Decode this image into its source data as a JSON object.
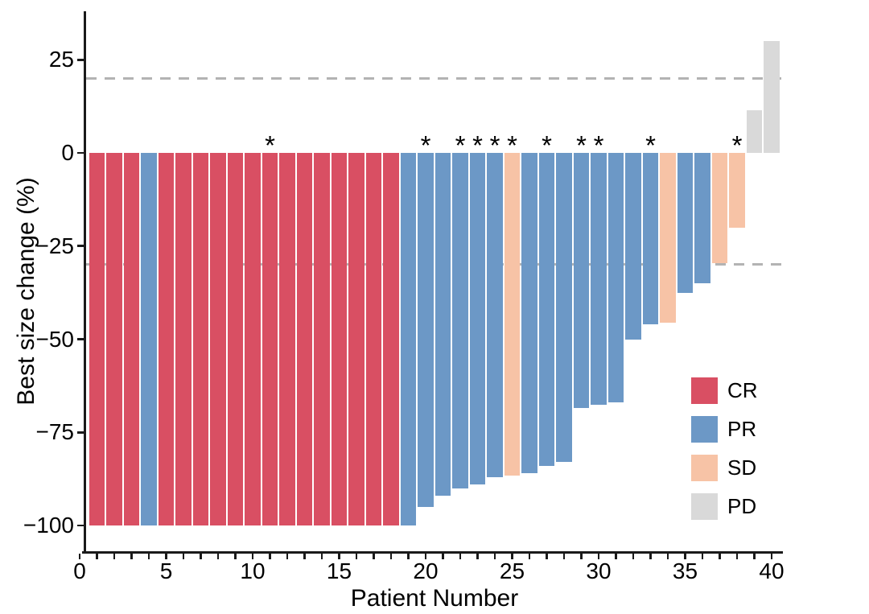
{
  "chart_data": {
    "type": "bar",
    "subtype": "waterfall",
    "title": "",
    "xlabel": "Patient Number",
    "ylabel": "Best size change (%)",
    "x_axis": {
      "min": 0,
      "max": 40,
      "minor_tick_every": 1,
      "labeled_ticks": [
        0,
        5,
        10,
        15,
        20,
        25,
        30,
        35,
        40
      ],
      "labels": [
        "0",
        "5",
        "10",
        "15",
        "20",
        "25",
        "30",
        "35",
        "40"
      ]
    },
    "y_axis": {
      "ticks": [
        25,
        0,
        -25,
        -50,
        -75,
        -100
      ],
      "labels": [
        "25",
        "0",
        "−25",
        "−50",
        "−75",
        "−100"
      ],
      "range_shown": [
        -107,
        38
      ]
    },
    "reference_lines": [
      20,
      -30
    ],
    "grid": false,
    "annotation_symbol": "*",
    "legend_position": "inside-right",
    "legend": [
      {
        "label": "CR",
        "color": "#D94F63"
      },
      {
        "label": "PR",
        "color": "#6C98C6"
      },
      {
        "label": "SD",
        "color": "#F7C3A6"
      },
      {
        "label": "PD",
        "color": "#D9D9D9"
      }
    ],
    "colors": {
      "CR": "#D94F63",
      "PR": "#6C98C6",
      "SD": "#F7C3A6",
      "PD": "#D9D9D9",
      "reference_line": "#B3B3B3",
      "axis": "#1A1A1A",
      "text": "#000000"
    },
    "patients": [
      {
        "id": 1,
        "value": -100,
        "response": "CR",
        "star": false
      },
      {
        "id": 2,
        "value": -100,
        "response": "CR",
        "star": false
      },
      {
        "id": 3,
        "value": -100,
        "response": "CR",
        "star": false
      },
      {
        "id": 4,
        "value": -100,
        "response": "PR",
        "star": false
      },
      {
        "id": 5,
        "value": -100,
        "response": "CR",
        "star": false
      },
      {
        "id": 6,
        "value": -100,
        "response": "CR",
        "star": false
      },
      {
        "id": 7,
        "value": -100,
        "response": "CR",
        "star": false
      },
      {
        "id": 8,
        "value": -100,
        "response": "CR",
        "star": false
      },
      {
        "id": 9,
        "value": -100,
        "response": "CR",
        "star": false
      },
      {
        "id": 10,
        "value": -100,
        "response": "CR",
        "star": false
      },
      {
        "id": 11,
        "value": -100,
        "response": "CR",
        "star": true
      },
      {
        "id": 12,
        "value": -100,
        "response": "CR",
        "star": false
      },
      {
        "id": 13,
        "value": -100,
        "response": "CR",
        "star": false
      },
      {
        "id": 14,
        "value": -100,
        "response": "CR",
        "star": false
      },
      {
        "id": 15,
        "value": -100,
        "response": "CR",
        "star": false
      },
      {
        "id": 16,
        "value": -100,
        "response": "CR",
        "star": false
      },
      {
        "id": 17,
        "value": -100,
        "response": "CR",
        "star": false
      },
      {
        "id": 18,
        "value": -100,
        "response": "CR",
        "star": false
      },
      {
        "id": 19,
        "value": -100,
        "response": "PR",
        "star": false
      },
      {
        "id": 20,
        "value": -95,
        "response": "PR",
        "star": true
      },
      {
        "id": 21,
        "value": -92,
        "response": "PR",
        "star": false
      },
      {
        "id": 22,
        "value": -90,
        "response": "PR",
        "star": true
      },
      {
        "id": 23,
        "value": -89,
        "response": "PR",
        "star": true
      },
      {
        "id": 24,
        "value": -87,
        "response": "PR",
        "star": true
      },
      {
        "id": 25,
        "value": -86.5,
        "response": "SD",
        "star": true
      },
      {
        "id": 26,
        "value": -86,
        "response": "PR",
        "star": false
      },
      {
        "id": 27,
        "value": -84,
        "response": "PR",
        "star": true
      },
      {
        "id": 28,
        "value": -83,
        "response": "PR",
        "star": false
      },
      {
        "id": 29,
        "value": -68.5,
        "response": "PR",
        "star": true
      },
      {
        "id": 30,
        "value": -67.5,
        "response": "PR",
        "star": true
      },
      {
        "id": 31,
        "value": -67,
        "response": "PR",
        "star": false
      },
      {
        "id": 32,
        "value": -50,
        "response": "PR",
        "star": false
      },
      {
        "id": 33,
        "value": -46,
        "response": "PR",
        "star": true
      },
      {
        "id": 34,
        "value": -45.5,
        "response": "SD",
        "star": false
      },
      {
        "id": 35,
        "value": -37.5,
        "response": "PR",
        "star": false
      },
      {
        "id": 36,
        "value": -35,
        "response": "PR",
        "star": false
      },
      {
        "id": 37,
        "value": -29.5,
        "response": "SD",
        "star": false
      },
      {
        "id": 38,
        "value": -20,
        "response": "SD",
        "star": true
      },
      {
        "id": 39,
        "value": 11.5,
        "response": "PD",
        "star": false
      },
      {
        "id": 40,
        "value": 30,
        "response": "PD",
        "star": false
      }
    ]
  }
}
